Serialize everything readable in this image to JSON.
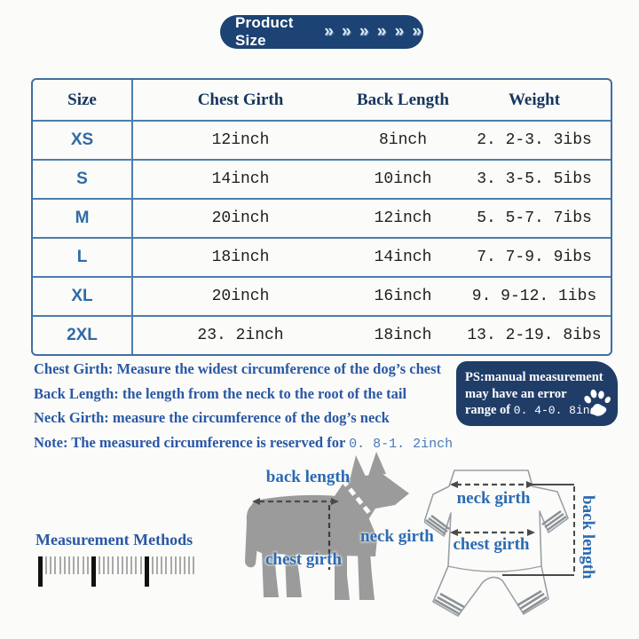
{
  "header": {
    "title": "Product Size",
    "chevrons": "» » » » » »"
  },
  "table": {
    "columns": [
      "Size",
      "Chest Girth",
      "Back Length",
      "Weight"
    ],
    "rows": [
      {
        "size": "XS",
        "chest": "12inch",
        "back": "8inch",
        "weight": "2. 2-3. 3ibs"
      },
      {
        "size": "S",
        "chest": "14inch",
        "back": "10inch",
        "weight": "3. 3-5. 5ibs"
      },
      {
        "size": "M",
        "chest": "20inch",
        "back": "12inch",
        "weight": "5. 5-7. 7ibs"
      },
      {
        "size": "L",
        "chest": "18inch",
        "back": "14inch",
        "weight": "7. 7-9. 9ibs"
      },
      {
        "size": "XL",
        "chest": "20inch",
        "back": "16inch",
        "weight": "9. 9-12. 1ibs"
      },
      {
        "size": "2XL",
        "chest": "23. 2inch",
        "back": "18inch",
        "weight": "13. 2-19. 8ibs"
      }
    ]
  },
  "notes": {
    "lines": [
      {
        "text": "Chest Girth: Measure the widest circumference of the dog’s chest",
        "suffix": ""
      },
      {
        "text": "Back Length: the length from the neck to the root of the tail",
        "suffix": ""
      },
      {
        "text": "Neck Girth: measure the circumference of the dog’s neck",
        "suffix": ""
      },
      {
        "text": "Note: The measured circumference is reserved for ",
        "suffix": "0. 8-1. 2inch"
      }
    ]
  },
  "ps_badge": {
    "line1": "PS:manual measurement",
    "line2": "may have an error",
    "line3_prefix": "range of ",
    "line3_value": "0. 4-0. 8inch"
  },
  "measurement": {
    "title": "Measurement Methods"
  },
  "dog_diagram": {
    "back_length": "back length",
    "neck_girth": "neck girth",
    "chest_girth": "chest girth"
  },
  "garment_diagram": {
    "neck_girth": "neck girth",
    "chest_girth": "chest girth",
    "back_length": "back length"
  },
  "colors": {
    "badge_navy": "#1c4373",
    "ps_navy": "#203d68",
    "table_border": "#4d7dad",
    "header_text": "#16365e",
    "size_blue": "#2e6ba6",
    "note_blue": "#2a58a5",
    "label_blue": "#2b6ab3",
    "data_text": "#1e1e1e",
    "dog_gray": "#9b9b9b"
  }
}
